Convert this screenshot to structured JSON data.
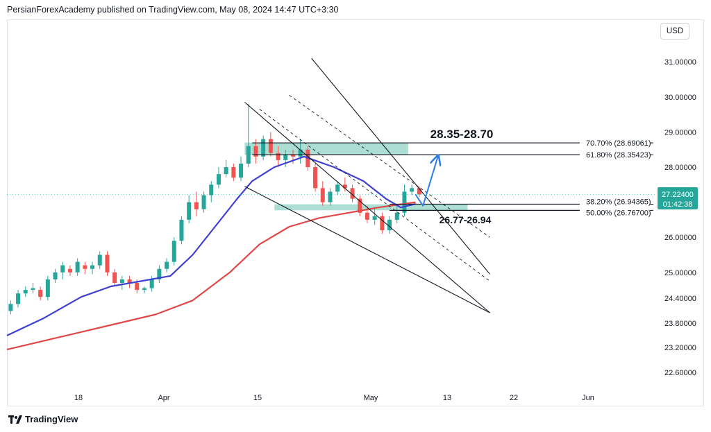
{
  "header": {
    "text": "PersianForexAcademy published on TradingView.com, May 08, 2024 14:47 UTC+3:30"
  },
  "currency": "USD",
  "brand": "TradingView",
  "colors": {
    "up": "#26a69a",
    "down": "#ef5350",
    "ma_fast": "#3f3fd1",
    "ma_slow": "#e04848",
    "zone": "#9fd8cd",
    "arrow": "#2f7de1",
    "price_label": "#26a69a"
  },
  "chart_data": {
    "type": "candlestick",
    "symbol_price_axis": [
      {
        "label": "31.00000",
        "value": 31.0
      },
      {
        "label": "30.00000",
        "value": 30.0
      },
      {
        "label": "29.00000",
        "value": 29.0
      },
      {
        "label": "28.00000",
        "value": 28.0
      },
      {
        "label": "26.00000",
        "value": 26.0
      },
      {
        "label": "25.00000",
        "value": 25.0
      },
      {
        "label": "24.40000",
        "value": 24.4
      },
      {
        "label": "23.80000",
        "value": 23.8
      },
      {
        "label": "23.20000",
        "value": 23.2
      },
      {
        "label": "22.60000",
        "value": 22.6
      }
    ],
    "time_axis": [
      {
        "label": "18",
        "bar": 10
      },
      {
        "label": "Apr",
        "bar": 20
      },
      {
        "label": "15",
        "bar": 30
      },
      {
        "label": "May",
        "bar": 44
      },
      {
        "label": "13",
        "bar": 52
      },
      {
        "label": "22",
        "bar": 59
      },
      {
        "label": "Jun",
        "bar": 67
      }
    ],
    "current_price": {
      "value": "27.22400",
      "countdown": "01:42:38",
      "price": 27.224
    },
    "candles": [
      [
        23.9,
        24.2,
        23.8,
        24.1
      ],
      [
        24.1,
        24.5,
        24.0,
        24.4
      ],
      [
        24.4,
        24.6,
        24.3,
        24.5
      ],
      [
        24.5,
        24.7,
        24.4,
        24.55
      ],
      [
        24.5,
        24.6,
        24.2,
        24.3
      ],
      [
        24.3,
        24.9,
        24.2,
        24.8
      ],
      [
        24.8,
        25.1,
        24.7,
        25.0
      ],
      [
        25.0,
        25.3,
        24.8,
        25.2
      ],
      [
        25.1,
        25.2,
        24.9,
        25.0
      ],
      [
        25.0,
        25.4,
        24.9,
        25.3
      ],
      [
        25.2,
        25.3,
        24.95,
        25.1
      ],
      [
        25.1,
        25.3,
        24.95,
        25.2
      ],
      [
        25.2,
        25.6,
        25.1,
        25.5
      ],
      [
        25.5,
        25.6,
        24.9,
        25.0
      ],
      [
        25.0,
        25.1,
        24.6,
        24.7
      ],
      [
        24.7,
        24.9,
        24.5,
        24.8
      ],
      [
        24.8,
        24.9,
        24.55,
        24.7
      ],
      [
        24.7,
        24.8,
        24.4,
        24.5
      ],
      [
        24.5,
        24.6,
        24.4,
        24.55
      ],
      [
        24.55,
        24.9,
        24.45,
        24.8
      ],
      [
        24.8,
        25.2,
        24.7,
        25.1
      ],
      [
        25.1,
        25.4,
        25.0,
        25.3
      ],
      [
        25.3,
        26.0,
        25.2,
        25.9
      ],
      [
        25.9,
        26.6,
        25.8,
        26.5
      ],
      [
        26.5,
        27.2,
        26.4,
        27.0
      ],
      [
        27.0,
        27.3,
        26.6,
        26.8
      ],
      [
        26.8,
        27.3,
        26.7,
        27.2
      ],
      [
        27.2,
        27.6,
        27.0,
        27.5
      ],
      [
        27.5,
        28.0,
        27.4,
        27.8
      ],
      [
        27.8,
        28.2,
        27.7,
        28.0
      ],
      [
        28.0,
        28.1,
        27.6,
        27.7
      ],
      [
        27.7,
        28.3,
        27.6,
        28.1
      ],
      [
        28.1,
        29.8,
        28.0,
        28.6
      ],
      [
        28.6,
        28.8,
        28.1,
        28.3
      ],
      [
        28.3,
        28.9,
        28.2,
        28.8
      ],
      [
        28.8,
        29.0,
        28.3,
        28.4
      ],
      [
        28.4,
        28.6,
        28.0,
        28.2
      ],
      [
        28.2,
        28.5,
        28.0,
        28.35
      ],
      [
        28.35,
        28.5,
        28.1,
        28.3
      ],
      [
        28.3,
        28.8,
        28.1,
        28.5
      ],
      [
        28.5,
        28.6,
        27.9,
        28.0
      ],
      [
        28.0,
        28.1,
        27.3,
        27.4
      ],
      [
        27.4,
        27.6,
        26.9,
        27.0
      ],
      [
        27.0,
        27.4,
        26.9,
        27.3
      ],
      [
        27.3,
        27.6,
        27.2,
        27.5
      ],
      [
        27.5,
        27.7,
        27.3,
        27.4
      ],
      [
        27.4,
        27.5,
        27.0,
        27.1
      ],
      [
        27.1,
        27.2,
        26.6,
        26.7
      ],
      [
        26.7,
        26.9,
        26.4,
        26.5
      ],
      [
        26.5,
        26.8,
        26.35,
        26.6
      ],
      [
        26.6,
        26.7,
        26.1,
        26.2
      ],
      [
        26.2,
        26.6,
        26.1,
        26.5
      ],
      [
        26.5,
        26.9,
        26.4,
        26.7
      ],
      [
        26.7,
        27.5,
        26.6,
        27.3
      ],
      [
        27.3,
        27.5,
        27.2,
        27.4
      ],
      [
        27.4,
        27.45,
        27.15,
        27.22
      ]
    ],
    "ma_fast": [
      [
        0,
        23.2
      ],
      [
        5,
        23.7
      ],
      [
        10,
        24.3
      ],
      [
        14,
        24.6
      ],
      [
        18,
        24.75
      ],
      [
        22,
        24.9
      ],
      [
        25,
        25.5
      ],
      [
        28,
        26.3
      ],
      [
        31,
        27.1
      ],
      [
        33,
        27.6
      ],
      [
        36,
        28.0
      ],
      [
        40,
        28.3
      ],
      [
        44,
        28.0
      ],
      [
        48,
        27.6
      ],
      [
        51,
        27.1
      ],
      [
        53,
        26.85
      ],
      [
        55,
        26.95
      ]
    ],
    "ma_slow": [
      [
        0,
        22.8
      ],
      [
        10,
        23.3
      ],
      [
        20,
        23.8
      ],
      [
        25,
        24.2
      ],
      [
        30,
        25.0
      ],
      [
        34,
        25.8
      ],
      [
        38,
        26.3
      ],
      [
        42,
        26.55
      ],
      [
        46,
        26.7
      ],
      [
        50,
        26.85
      ],
      [
        55,
        27.0
      ]
    ],
    "channels": [
      {
        "style": "solid",
        "from": [
          32,
          29.85
        ],
        "to": [
          65,
          23.85
        ]
      },
      {
        "style": "solid",
        "from": [
          32,
          27.45
        ],
        "to": [
          65,
          23.85
        ]
      },
      {
        "style": "solid",
        "from": [
          41,
          31.1
        ],
        "to": [
          65,
          24.95
        ]
      },
      {
        "style": "dashed",
        "from": [
          34,
          29.65
        ],
        "to": [
          65,
          24.75
        ]
      },
      {
        "style": "dashed",
        "from": [
          38,
          30.05
        ],
        "to": [
          65,
          26.0
        ]
      }
    ],
    "fib_levels": [
      {
        "label": "70.70% (28.69061)",
        "value": 28.69061
      },
      {
        "label": "61.80% (28.35423)",
        "value": 28.35423
      },
      {
        "label": "38.20% (26.94365)",
        "value": 26.94365
      },
      {
        "label": "50.00% (26.76700)",
        "value": 26.767
      }
    ],
    "zones": [
      {
        "label": "28.35-28.70",
        "from_bar": 32,
        "to_bar": 54,
        "low": 28.35,
        "high": 28.7
      },
      {
        "label": "26.77-26.94",
        "from_bar": 36,
        "to_bar": 62,
        "low": 26.77,
        "high": 26.94
      }
    ],
    "projection": [
      [
        55,
        27.22
      ],
      [
        56,
        26.9
      ],
      [
        58,
        28.3
      ]
    ]
  }
}
